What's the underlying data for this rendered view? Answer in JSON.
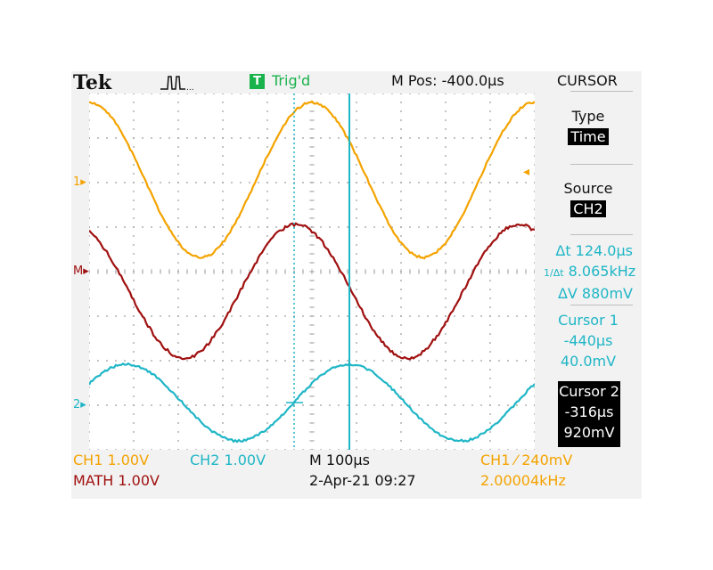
{
  "header": {
    "brand": "Tek",
    "trigger_badge": "T",
    "trigger_status": "Trig'd",
    "m_pos": "M Pos: -400.0µs"
  },
  "menu": {
    "title": "CURSOR",
    "type_label": "Type",
    "type_value": "Time",
    "source_label": "Source",
    "source_value": "CH2",
    "delta_t": "Δt 124.0µs",
    "inv_delta_t": "8.065kHz",
    "delta_v": "ΔV 880mV",
    "cursor1_label": "Cursor 1",
    "cursor1_time": "-440µs",
    "cursor1_volt": "40.0mV",
    "cursor2_label": "Cursor 2",
    "cursor2_time": "-316µs",
    "cursor2_volt": "920mV"
  },
  "markers": {
    "ch1": "1",
    "math": "M",
    "ch2": "2"
  },
  "footer": {
    "ch1_scale": "CH1  1.00V",
    "ch2_scale": "CH2  1.00V",
    "math_scale": "MATH 1.00V",
    "timebase": "M 100µs",
    "datetime": "2-Apr-21 09:27",
    "trigger": "CH1  ⁄  240mV",
    "frequency": "2.00004kHz"
  },
  "colors": {
    "ch1": "#f4a300",
    "ch2": "#1fb6c6",
    "math": "#a01010",
    "trigger_badge": "#19b24b"
  }
}
